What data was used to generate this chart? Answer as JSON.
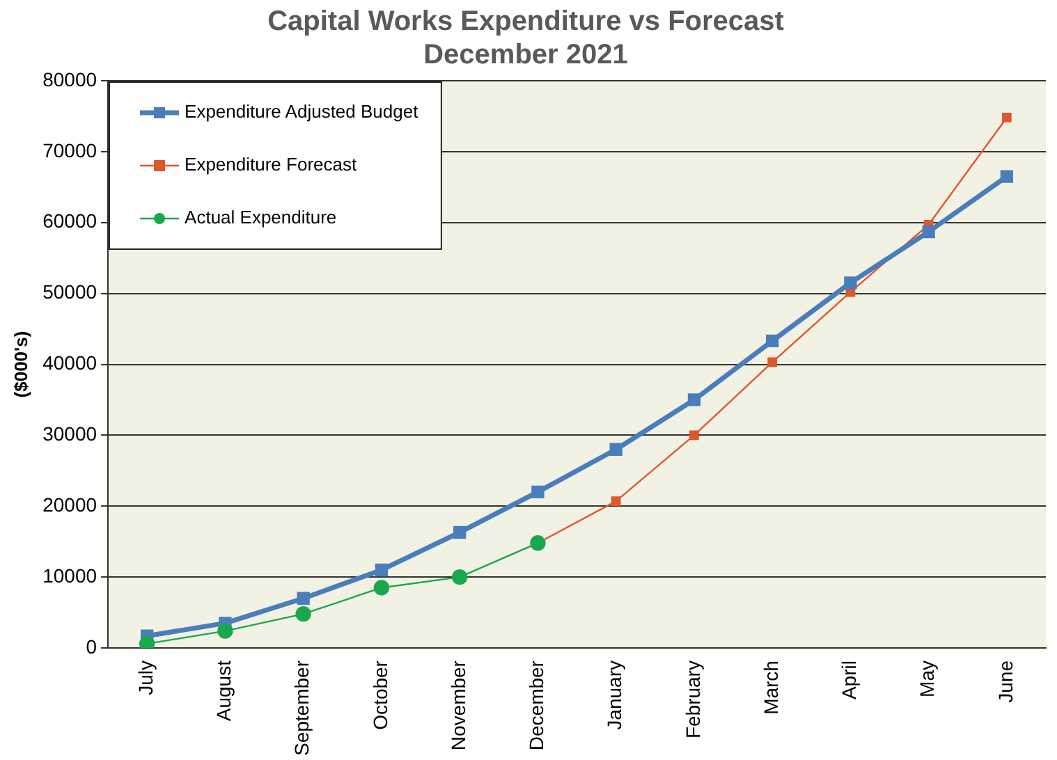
{
  "chart_data": {
    "type": "line",
    "title": "Capital Works Expenditure vs Forecast\nDecember 2021",
    "ylabel": "($000's)",
    "categories": [
      "July",
      "August",
      "September",
      "October",
      "November",
      "December",
      "January",
      "February",
      "March",
      "April",
      "May",
      "June"
    ],
    "series": [
      {
        "name": "Expenditure Adjusted Budget",
        "color": "#4a7ebb",
        "marker": "square",
        "values": [
          1700,
          3500,
          7000,
          11000,
          16300,
          22000,
          28000,
          35000,
          43300,
          51500,
          58700,
          66500
        ]
      },
      {
        "name": "Expenditure Forecast",
        "color": "#e0572b",
        "marker": "square",
        "values": [
          null,
          null,
          null,
          null,
          null,
          14800,
          20700,
          30000,
          40300,
          50200,
          59700,
          74800
        ]
      },
      {
        "name": "Actual Expenditure",
        "color": "#1aa84f",
        "marker": "circle",
        "values": [
          600,
          2400,
          4800,
          8500,
          10000,
          14800,
          null,
          null,
          null,
          null,
          null,
          null
        ]
      }
    ],
    "ylim": [
      0,
      80000
    ],
    "yticks": [
      0,
      10000,
      20000,
      30000,
      40000,
      50000,
      60000,
      70000,
      80000
    ],
    "grid": "y",
    "legend": "top left"
  }
}
